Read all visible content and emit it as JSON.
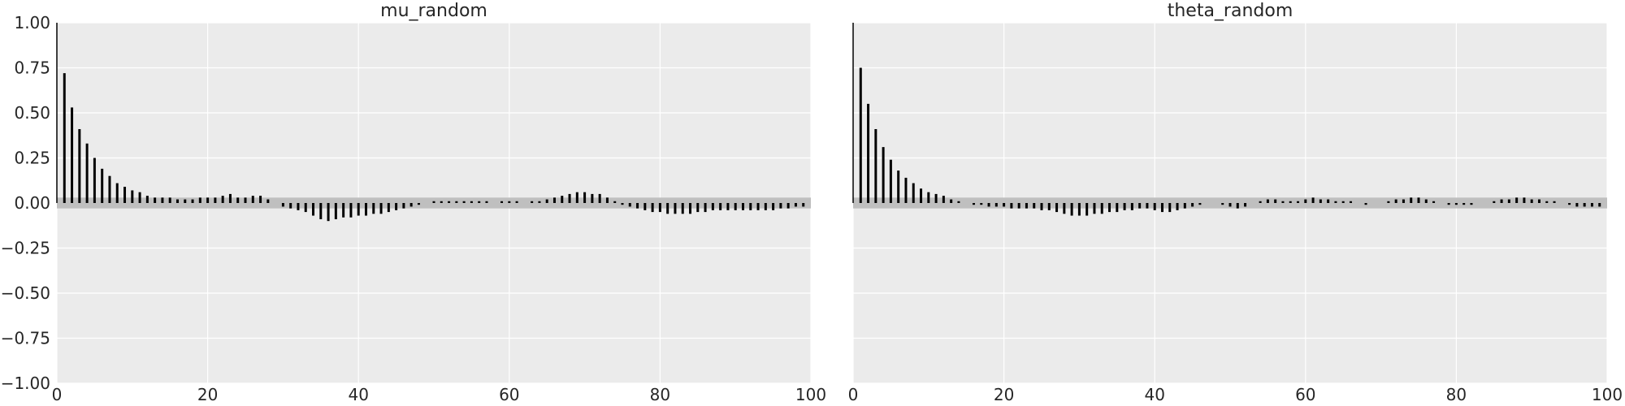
{
  "chart_data": [
    {
      "type": "bar",
      "title": "mu_random",
      "xlabel": "",
      "ylabel": "",
      "xlim": [
        0,
        100
      ],
      "ylim": [
        -1.0,
        1.0
      ],
      "x_ticks": [
        "0",
        "20",
        "40",
        "60",
        "80",
        "100"
      ],
      "y_ticks": [
        "1.00",
        "0.75",
        "0.50",
        "0.25",
        "0.00",
        "−0.25",
        "−0.50",
        "−0.75",
        "−1.00"
      ],
      "grid": true,
      "band": 0.03,
      "lags": [
        0,
        1,
        2,
        3,
        4,
        5,
        6,
        7,
        8,
        9,
        10,
        11,
        12,
        13,
        14,
        15,
        16,
        17,
        18,
        19,
        20,
        21,
        22,
        23,
        24,
        25,
        26,
        27,
        28,
        29,
        30,
        31,
        32,
        33,
        34,
        35,
        36,
        37,
        38,
        39,
        40,
        41,
        42,
        43,
        44,
        45,
        46,
        47,
        48,
        49,
        50,
        51,
        52,
        53,
        54,
        55,
        56,
        57,
        58,
        59,
        60,
        61,
        62,
        63,
        64,
        65,
        66,
        67,
        68,
        69,
        70,
        71,
        72,
        73,
        74,
        75,
        76,
        77,
        78,
        79,
        80,
        81,
        82,
        83,
        84,
        85,
        86,
        87,
        88,
        89,
        90,
        91,
        92,
        93,
        94,
        95,
        96,
        97,
        98,
        99
      ],
      "values": [
        1.0,
        0.72,
        0.53,
        0.41,
        0.33,
        0.25,
        0.19,
        0.15,
        0.11,
        0.09,
        0.07,
        0.06,
        0.04,
        0.03,
        0.03,
        0.03,
        0.02,
        0.02,
        0.02,
        0.03,
        0.03,
        0.03,
        0.04,
        0.05,
        0.03,
        0.03,
        0.04,
        0.04,
        0.02,
        0.0,
        -0.02,
        -0.03,
        -0.04,
        -0.05,
        -0.07,
        -0.09,
        -0.1,
        -0.09,
        -0.08,
        -0.08,
        -0.07,
        -0.07,
        -0.06,
        -0.06,
        -0.05,
        -0.04,
        -0.03,
        -0.02,
        -0.01,
        0.0,
        0.01,
        0.01,
        0.01,
        0.01,
        0.01,
        0.01,
        0.01,
        0.01,
        0.0,
        0.01,
        0.01,
        0.01,
        0.0,
        0.01,
        0.01,
        0.02,
        0.03,
        0.04,
        0.05,
        0.06,
        0.06,
        0.05,
        0.05,
        0.03,
        0.01,
        -0.01,
        -0.02,
        -0.03,
        -0.04,
        -0.05,
        -0.05,
        -0.06,
        -0.06,
        -0.06,
        -0.06,
        -0.05,
        -0.05,
        -0.04,
        -0.04,
        -0.04,
        -0.04,
        -0.04,
        -0.04,
        -0.04,
        -0.04,
        -0.04,
        -0.03,
        -0.03,
        -0.02,
        -0.02
      ]
    },
    {
      "type": "bar",
      "title": "theta_random",
      "xlabel": "",
      "ylabel": "",
      "xlim": [
        0,
        100
      ],
      "ylim": [
        -1.0,
        1.0
      ],
      "x_ticks": [
        "0",
        "20",
        "40",
        "60",
        "80",
        "100"
      ],
      "grid": true,
      "band": 0.03,
      "lags": [
        0,
        1,
        2,
        3,
        4,
        5,
        6,
        7,
        8,
        9,
        10,
        11,
        12,
        13,
        14,
        15,
        16,
        17,
        18,
        19,
        20,
        21,
        22,
        23,
        24,
        25,
        26,
        27,
        28,
        29,
        30,
        31,
        32,
        33,
        34,
        35,
        36,
        37,
        38,
        39,
        40,
        41,
        42,
        43,
        44,
        45,
        46,
        47,
        48,
        49,
        50,
        51,
        52,
        53,
        54,
        55,
        56,
        57,
        58,
        59,
        60,
        61,
        62,
        63,
        64,
        65,
        66,
        67,
        68,
        69,
        70,
        71,
        72,
        73,
        74,
        75,
        76,
        77,
        78,
        79,
        80,
        81,
        82,
        83,
        84,
        85,
        86,
        87,
        88,
        89,
        90,
        91,
        92,
        93,
        94,
        95,
        96,
        97,
        98,
        99
      ],
      "values": [
        1.0,
        0.75,
        0.55,
        0.41,
        0.31,
        0.24,
        0.18,
        0.14,
        0.11,
        0.08,
        0.06,
        0.05,
        0.04,
        0.02,
        0.01,
        0.0,
        -0.01,
        -0.01,
        -0.02,
        -0.02,
        -0.02,
        -0.03,
        -0.03,
        -0.03,
        -0.03,
        -0.04,
        -0.04,
        -0.05,
        -0.06,
        -0.07,
        -0.07,
        -0.07,
        -0.06,
        -0.06,
        -0.05,
        -0.05,
        -0.04,
        -0.04,
        -0.03,
        -0.03,
        -0.04,
        -0.05,
        -0.05,
        -0.04,
        -0.03,
        -0.02,
        -0.01,
        0.0,
        0.0,
        -0.01,
        -0.02,
        -0.03,
        -0.02,
        0.0,
        0.01,
        0.02,
        0.02,
        0.01,
        0.01,
        0.01,
        0.02,
        0.03,
        0.02,
        0.02,
        0.01,
        0.01,
        0.01,
        0.0,
        -0.01,
        0.0,
        0.0,
        0.01,
        0.02,
        0.02,
        0.03,
        0.03,
        0.02,
        0.01,
        0.0,
        -0.01,
        -0.01,
        -0.01,
        -0.01,
        0.0,
        0.0,
        0.01,
        0.02,
        0.02,
        0.03,
        0.03,
        0.02,
        0.02,
        0.01,
        0.01,
        0.0,
        -0.01,
        -0.02,
        -0.02,
        -0.02,
        -0.02
      ]
    }
  ],
  "colors": {
    "axes_bg": "#ebebeb",
    "grid": "#ffffff",
    "band": "#bfbfbf",
    "bar": "#000000",
    "text": "#262626"
  }
}
